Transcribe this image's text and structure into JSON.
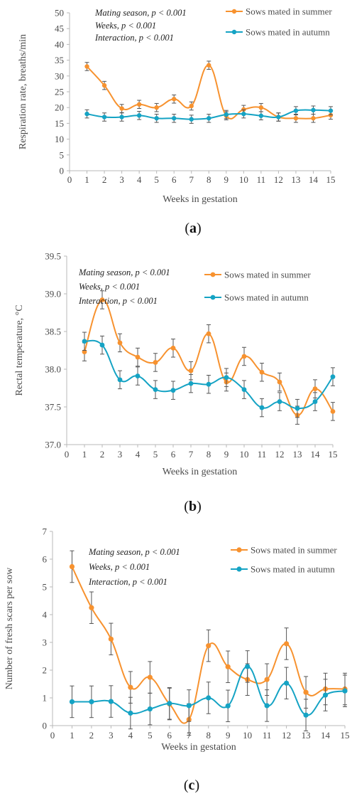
{
  "colors": {
    "summer": "#F7922F",
    "autumn": "#15A3C4",
    "axis": "#b8b8b8",
    "text": "#4a4a4a",
    "error": "#555555"
  },
  "chart_data": [
    {
      "type": "line",
      "panel_label": "a",
      "ylabel": "Respiration rate, breaths/min",
      "xlabel": "Weeks in gestation",
      "xlim": [
        0,
        15
      ],
      "ylim": [
        0,
        50
      ],
      "x_ticks": [
        "0",
        "1",
        "2",
        "3",
        "4",
        "5",
        "6",
        "7",
        "8",
        "9",
        "10",
        "11",
        "12",
        "13",
        "14",
        "15"
      ],
      "y_ticks": [
        "0",
        "5",
        "10",
        "15",
        "20",
        "25",
        "30",
        "35",
        "40",
        "45",
        "50"
      ],
      "stats": [
        "Mating season, p < 0.001",
        "Weeks, p < 0.001",
        "Interaction, p < 0.001"
      ],
      "legend_position": "top-right",
      "series": [
        {
          "name": "Sows mated in summer",
          "color": "#F7922F",
          "x": [
            1,
            2,
            3,
            4,
            5,
            6,
            7,
            8,
            9,
            10,
            11,
            12,
            13,
            14,
            15
          ],
          "values": [
            33.0,
            27.0,
            19.7,
            21.0,
            20.0,
            22.7,
            20.5,
            33.4,
            17.4,
            19.4,
            20.0,
            17.0,
            16.6,
            16.6,
            17.6
          ],
          "error": [
            1.3,
            1.3,
            1.3,
            1.3,
            1.3,
            1.3,
            1.3,
            1.3,
            1.3,
            1.3,
            1.3,
            1.3,
            1.3,
            1.3,
            1.3
          ]
        },
        {
          "name": "Sows mated in autumn",
          "color": "#15A3C4",
          "x": [
            1,
            2,
            3,
            4,
            5,
            6,
            7,
            8,
            9,
            10,
            11,
            12,
            13,
            14,
            15
          ],
          "values": [
            18.0,
            17.0,
            17.0,
            17.5,
            16.6,
            16.6,
            16.3,
            16.6,
            17.8,
            18.0,
            17.4,
            17.0,
            19.0,
            19.2,
            19.0
          ],
          "error": [
            1.3,
            1.3,
            1.3,
            1.3,
            1.3,
            1.3,
            1.3,
            1.3,
            1.3,
            1.3,
            1.3,
            1.3,
            1.3,
            1.3,
            1.3
          ]
        }
      ]
    },
    {
      "type": "line",
      "panel_label": "b",
      "ylabel": "Rectal temperature, °C",
      "xlabel": "Weeks in gestation",
      "xlim": [
        0,
        15
      ],
      "ylim": [
        37.0,
        39.5
      ],
      "x_ticks": [
        "0",
        "1",
        "2",
        "3",
        "4",
        "5",
        "6",
        "7",
        "8",
        "9",
        "10",
        "11",
        "12",
        "13",
        "14",
        "15"
      ],
      "y_ticks": [
        "37.0",
        "37.5",
        "38.0",
        "38.5",
        "39.0",
        "39.5"
      ],
      "stats": [
        "Mating season, p < 0.001",
        "Weeks, p < 0.001",
        "Interaction, p < 0.001"
      ],
      "legend_position": "top-right",
      "series": [
        {
          "name": "Sows mated in summer",
          "color": "#F7922F",
          "x": [
            1,
            2,
            3,
            4,
            5,
            6,
            7,
            8,
            9,
            10,
            11,
            12,
            13,
            14,
            15
          ],
          "values": [
            38.23,
            38.92,
            38.35,
            38.16,
            38.09,
            38.28,
            37.98,
            38.47,
            37.83,
            38.17,
            37.96,
            37.83,
            37.39,
            37.74,
            37.44
          ],
          "error": [
            0.12,
            0.12,
            0.12,
            0.12,
            0.12,
            0.12,
            0.12,
            0.12,
            0.12,
            0.12,
            0.12,
            0.12,
            0.12,
            0.12,
            0.12
          ]
        },
        {
          "name": "Sows mated in autumn",
          "color": "#15A3C4",
          "x": [
            1,
            2,
            3,
            4,
            5,
            6,
            7,
            8,
            9,
            10,
            11,
            12,
            13,
            14,
            15
          ],
          "values": [
            38.37,
            38.32,
            37.86,
            37.91,
            37.73,
            37.72,
            37.81,
            37.8,
            37.89,
            37.73,
            37.49,
            37.57,
            37.48,
            37.57,
            37.9
          ],
          "error": [
            0.12,
            0.12,
            0.12,
            0.12,
            0.12,
            0.12,
            0.12,
            0.12,
            0.12,
            0.12,
            0.12,
            0.12,
            0.12,
            0.12,
            0.12
          ]
        }
      ]
    },
    {
      "type": "line",
      "panel_label": "c",
      "ylabel": "Number of fresh scars per sow",
      "xlabel": "Weeks in gestation",
      "xlim": [
        0,
        15
      ],
      "ylim": [
        0,
        7
      ],
      "x_ticks": [
        "0",
        "1",
        "2",
        "3",
        "4",
        "5",
        "6",
        "7",
        "8",
        "9",
        "10",
        "11",
        "12",
        "13",
        "14",
        "15"
      ],
      "y_ticks": [
        "0",
        "1",
        "2",
        "3",
        "4",
        "5",
        "6",
        "7"
      ],
      "stats": [
        "Mating season, p < 0.001",
        "Weeks, p < 0.001",
        "Interaction, p < 0.001"
      ],
      "legend_position": "top-right",
      "series": [
        {
          "name": "Sows mated in summer",
          "color": "#F7922F",
          "x": [
            1,
            2,
            3,
            4,
            5,
            6,
            7,
            8,
            9,
            10,
            11,
            12,
            13,
            14,
            15
          ],
          "values": [
            5.73,
            4.25,
            3.12,
            1.38,
            1.74,
            0.78,
            0.22,
            2.88,
            2.12,
            1.66,
            1.66,
            2.95,
            1.2,
            1.32,
            1.32
          ],
          "error": [
            0.57,
            0.57,
            0.57,
            0.57,
            0.57,
            0.57,
            0.57,
            0.57,
            0.57,
            0.57,
            0.57,
            0.57,
            0.57,
            0.57,
            0.57
          ]
        },
        {
          "name": "Sows mated in autumn",
          "color": "#15A3C4",
          "x": [
            1,
            2,
            3,
            4,
            5,
            6,
            7,
            8,
            9,
            10,
            11,
            12,
            13,
            14,
            15
          ],
          "values": [
            0.86,
            0.86,
            0.87,
            0.45,
            0.6,
            0.8,
            0.72,
            1.0,
            0.71,
            2.13,
            0.72,
            1.53,
            0.38,
            1.1,
            1.25
          ],
          "error": [
            0.57,
            0.57,
            0.57,
            0.57,
            0.57,
            0.57,
            0.57,
            0.57,
            0.57,
            0.57,
            0.57,
            0.57,
            0.57,
            0.57,
            0.57
          ]
        }
      ]
    }
  ]
}
